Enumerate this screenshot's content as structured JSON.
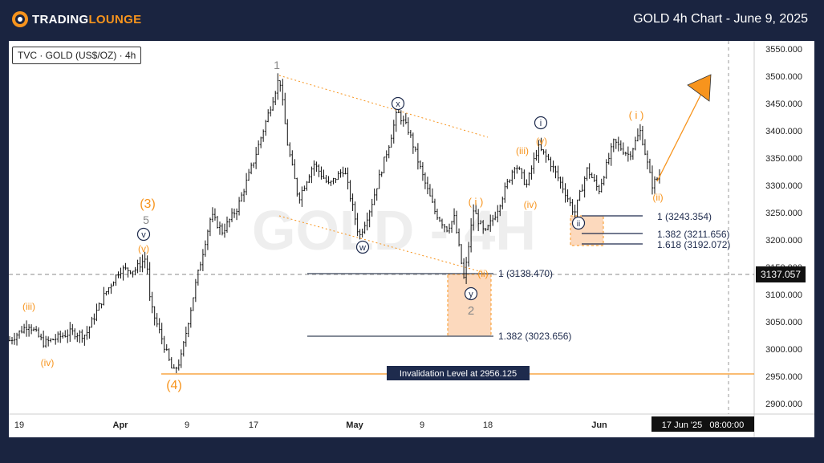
{
  "header": {
    "logo_part1": "TRADING",
    "logo_part2": "LOUNGE",
    "title": "GOLD 4h Chart - June 9, 2025"
  },
  "colors": {
    "background": "#1a2440",
    "orange": "#f7941d",
    "navy": "#1e2b4d",
    "gray_label": "#888888",
    "price_bar": "#111111",
    "zone_fill": "#fcd9bd"
  },
  "symbol_label": "TVC · GOLD (US$/OZ) · 4h",
  "chart_data": {
    "type": "ohlc",
    "watermark": "GOLD - 4H",
    "y_axis": {
      "ticks": [
        "3550.000",
        "3500.000",
        "3450.000",
        "3400.000",
        "3350.000",
        "3300.000",
        "3250.000",
        "3200.000",
        "3150.000",
        "3100.000",
        "3050.000",
        "3000.000",
        "2950.000",
        "2900.000"
      ],
      "range": [
        2880,
        3565
      ]
    },
    "x_axis": {
      "ticks": [
        "19",
        "Apr",
        "9",
        "17",
        "May",
        "9",
        "18",
        "Jun"
      ],
      "cursor_label": "17 Jun '25   08:00:00"
    },
    "current_price": "3137.057",
    "price_anchors": [
      {
        "x": 0,
        "y": 3015
      },
      {
        "x": 0.025,
        "y": 3045
      },
      {
        "x": 0.045,
        "y": 3010
      },
      {
        "x": 0.08,
        "y": 3030
      },
      {
        "x": 0.1,
        "y": 3025
      },
      {
        "x": 0.125,
        "y": 3100
      },
      {
        "x": 0.145,
        "y": 3145
      },
      {
        "x": 0.165,
        "y": 3145
      },
      {
        "x": 0.18,
        "y": 3168
      },
      {
        "x": 0.185,
        "y": 3080
      },
      {
        "x": 0.2,
        "y": 3020
      },
      {
        "x": 0.215,
        "y": 2955
      },
      {
        "x": 0.225,
        "y": 2980
      },
      {
        "x": 0.245,
        "y": 3120
      },
      {
        "x": 0.265,
        "y": 3245
      },
      {
        "x": 0.28,
        "y": 3215
      },
      {
        "x": 0.3,
        "y": 3260
      },
      {
        "x": 0.32,
        "y": 3340
      },
      {
        "x": 0.34,
        "y": 3430
      },
      {
        "x": 0.355,
        "y": 3500
      },
      {
        "x": 0.365,
        "y": 3380
      },
      {
        "x": 0.38,
        "y": 3275
      },
      {
        "x": 0.4,
        "y": 3340
      },
      {
        "x": 0.42,
        "y": 3300
      },
      {
        "x": 0.44,
        "y": 3330
      },
      {
        "x": 0.46,
        "y": 3205
      },
      {
        "x": 0.475,
        "y": 3260
      },
      {
        "x": 0.5,
        "y": 3380
      },
      {
        "x": 0.51,
        "y": 3435
      },
      {
        "x": 0.525,
        "y": 3400
      },
      {
        "x": 0.545,
        "y": 3310
      },
      {
        "x": 0.56,
        "y": 3250
      },
      {
        "x": 0.575,
        "y": 3220
      },
      {
        "x": 0.585,
        "y": 3240
      },
      {
        "x": 0.598,
        "y": 3125
      },
      {
        "x": 0.61,
        "y": 3255
      },
      {
        "x": 0.625,
        "y": 3210
      },
      {
        "x": 0.64,
        "y": 3250
      },
      {
        "x": 0.665,
        "y": 3340
      },
      {
        "x": 0.68,
        "y": 3300
      },
      {
        "x": 0.695,
        "y": 3370
      },
      {
        "x": 0.71,
        "y": 3345
      },
      {
        "x": 0.73,
        "y": 3290
      },
      {
        "x": 0.743,
        "y": 3248
      },
      {
        "x": 0.76,
        "y": 3330
      },
      {
        "x": 0.775,
        "y": 3290
      },
      {
        "x": 0.795,
        "y": 3380
      },
      {
        "x": 0.815,
        "y": 3355
      },
      {
        "x": 0.83,
        "y": 3400
      },
      {
        "x": 0.845,
        "y": 3300
      },
      {
        "x": 0.855,
        "y": 3318
      }
    ],
    "fib_levels": [
      {
        "label": "1 (3243.354)",
        "value": 3243.354
      },
      {
        "label": "1.382 (3211.656)",
        "value": 3211.656
      },
      {
        "label": "1.618 (3192.072)",
        "value": 3192.072
      },
      {
        "label": "1 (3138.470)",
        "value": 3138.47
      },
      {
        "label": "1.382 (3023.656)",
        "value": 3023.656
      }
    ],
    "invalidation": {
      "label": "Invalidation Level at 2956.125",
      "value": 2956.125
    },
    "wave_labels": [
      {
        "text": "(iii)",
        "style": "orange"
      },
      {
        "text": "(iv)",
        "style": "orange"
      },
      {
        "text": "(3)",
        "style": "orange"
      },
      {
        "text": "5",
        "style": "gray"
      },
      {
        "text": "v",
        "style": "circle"
      },
      {
        "text": "(v)",
        "style": "orange"
      },
      {
        "text": "(4)",
        "style": "orange"
      },
      {
        "text": "1",
        "style": "gray"
      },
      {
        "text": "x",
        "style": "circle"
      },
      {
        "text": "w",
        "style": "circle"
      },
      {
        "text": "( i )",
        "style": "orange"
      },
      {
        "text": "(ii)",
        "style": "orange"
      },
      {
        "text": "y",
        "style": "circle"
      },
      {
        "text": "2",
        "style": "gray"
      },
      {
        "text": "(iii)",
        "style": "orange"
      },
      {
        "text": "(iv)",
        "style": "orange"
      },
      {
        "text": "(v)",
        "style": "orange"
      },
      {
        "text": "i",
        "style": "circle"
      },
      {
        "text": "ii",
        "style": "circle"
      },
      {
        "text": "( i )",
        "style": "orange"
      },
      {
        "text": "(ii)",
        "style": "orange"
      }
    ]
  }
}
